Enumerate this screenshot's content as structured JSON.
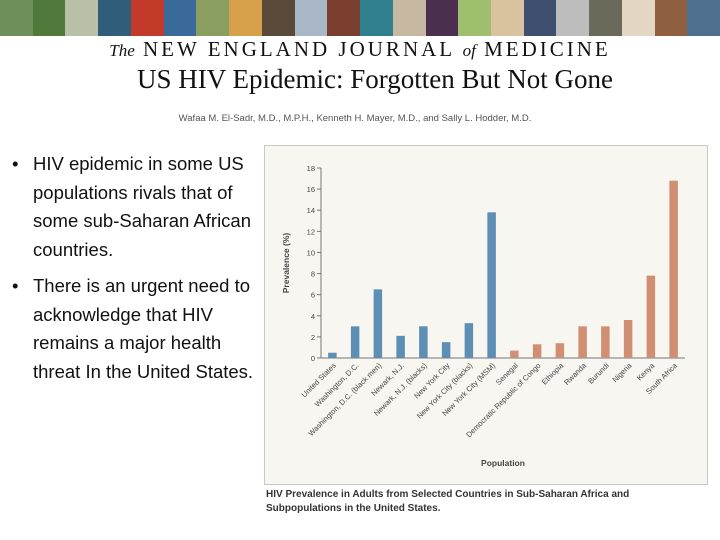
{
  "banner": {
    "tiles": [
      "#6f8f5a",
      "#4f7a3c",
      "#b8c0a8",
      "#2f5d7a",
      "#c23a2a",
      "#3a6a9a",
      "#8a9f5f",
      "#d7a04a",
      "#5a4a3a",
      "#a7b7c7",
      "#7a3f2f",
      "#2f7f8f",
      "#c7b9a1",
      "#4a2f4f",
      "#9fbf6f",
      "#d9c39f",
      "#3f4f6f",
      "#bdbdbd",
      "#6a6a5a",
      "#e3d7c3",
      "#8f5f3f",
      "#4f6f8f"
    ]
  },
  "journal": {
    "the": "The",
    "part1": "NEW ENGLAND JOURNAL",
    "of": "of",
    "part2": "MEDICINE"
  },
  "slide": {
    "title": "US HIV Epidemic: Forgotten But Not Gone",
    "authors": "Wafaa M. El-Sadr, M.D., M.P.H., Kenneth H. Mayer, M.D., and Sally L. Hodder, M.D.",
    "bullets": [
      "HIV epidemic in some US populations rivals that of some sub-Saharan African countries.",
      "There is an urgent need to acknowledge that HIV remains a major health threat In the United States."
    ]
  },
  "caption": "HIV Prevalence in Adults from Selected Countries in Sub-Saharan Africa and Subpopulations in the United States.",
  "chart_data": {
    "type": "bar",
    "title": "",
    "xlabel": "Population",
    "ylabel": "Prevalence (%)",
    "ylim": [
      0,
      18
    ],
    "yticks": [
      0,
      2,
      4,
      6,
      8,
      10,
      12,
      14,
      16,
      18
    ],
    "categories": [
      "United States",
      "Washington, D.C.",
      "Washington, D.C. (black men)",
      "Newark, N.J.",
      "Newark, N.J. (blacks)",
      "New York City",
      "New York City (blacks)",
      "New York City (MSM)",
      "Senegal",
      "Democratic Republic of Congo",
      "Ethiopia",
      "Rwanda",
      "Burundi",
      "Nigeria",
      "Kenya",
      "South Africa"
    ],
    "series": [
      {
        "name": "United States",
        "color": "#5d8eb4",
        "values": [
          0.5,
          3.0,
          6.5,
          2.1,
          3.0,
          1.5,
          3.3,
          13.8,
          null,
          null,
          null,
          null,
          null,
          null,
          null,
          null
        ]
      },
      {
        "name": "Sub-Saharan Africa",
        "color": "#d08f73",
        "values": [
          null,
          null,
          null,
          null,
          null,
          null,
          null,
          null,
          0.7,
          1.3,
          1.4,
          3.0,
          3.0,
          3.6,
          7.8,
          16.8
        ]
      }
    ]
  }
}
